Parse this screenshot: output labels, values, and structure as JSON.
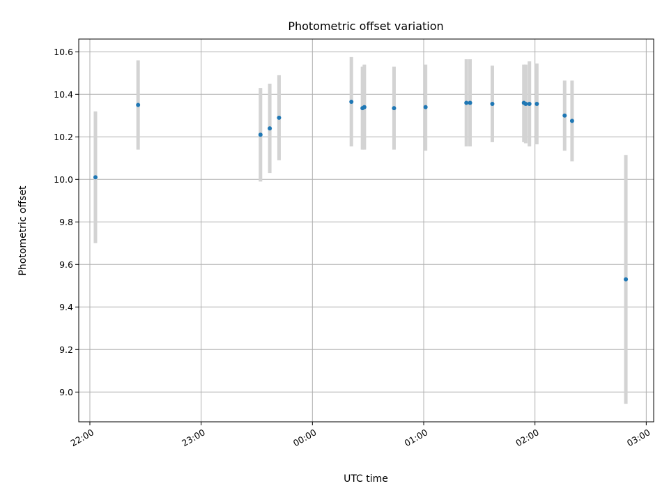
{
  "chart_data": {
    "type": "scatter",
    "title": "Photometric offset variation",
    "xlabel": "UTC time",
    "ylabel": "Photometric offset",
    "xlim": [
      "21:54",
      "03:04"
    ],
    "ylim": [
      8.86,
      10.66
    ],
    "grid": true,
    "colors": {
      "point": "#1f77b4",
      "errorbar": "#d3d3d3",
      "grid": "#b0b0b0"
    },
    "x_ticks": [
      "22:00",
      "23:00",
      "00:00",
      "01:00",
      "02:00",
      "03:00"
    ],
    "y_ticks": [
      "9.0",
      "9.2",
      "9.4",
      "9.6",
      "9.8",
      "10.0",
      "10.2",
      "10.4",
      "10.6"
    ],
    "points": [
      {
        "x": "22:03",
        "y": 10.01,
        "low": 9.7,
        "high": 10.32
      },
      {
        "x": "22:26",
        "y": 10.35,
        "low": 10.14,
        "high": 10.56
      },
      {
        "x": "23:32",
        "y": 10.21,
        "low": 9.99,
        "high": 10.43
      },
      {
        "x": "23:37",
        "y": 10.24,
        "low": 10.03,
        "high": 10.45
      },
      {
        "x": "23:42",
        "y": 10.29,
        "low": 10.09,
        "high": 10.49
      },
      {
        "x": "00:21",
        "y": 10.365,
        "low": 10.155,
        "high": 10.575
      },
      {
        "x": "00:27",
        "y": 10.335,
        "low": 10.14,
        "high": 10.53
      },
      {
        "x": "00:28",
        "y": 10.34,
        "low": 10.14,
        "high": 10.54
      },
      {
        "x": "00:44",
        "y": 10.335,
        "low": 10.14,
        "high": 10.53
      },
      {
        "x": "01:01",
        "y": 10.34,
        "low": 10.135,
        "high": 10.54
      },
      {
        "x": "01:23",
        "y": 10.36,
        "low": 10.155,
        "high": 10.565
      },
      {
        "x": "01:25",
        "y": 10.36,
        "low": 10.155,
        "high": 10.565
      },
      {
        "x": "01:37",
        "y": 10.355,
        "low": 10.175,
        "high": 10.535
      },
      {
        "x": "01:54",
        "y": 10.36,
        "low": 10.175,
        "high": 10.54
      },
      {
        "x": "01:55",
        "y": 10.355,
        "low": 10.17,
        "high": 10.54
      },
      {
        "x": "01:57",
        "y": 10.355,
        "low": 10.155,
        "high": 10.555
      },
      {
        "x": "02:01",
        "y": 10.355,
        "low": 10.165,
        "high": 10.545
      },
      {
        "x": "02:16",
        "y": 10.3,
        "low": 10.135,
        "high": 10.465
      },
      {
        "x": "02:20",
        "y": 10.275,
        "low": 10.085,
        "high": 10.465
      },
      {
        "x": "02:49",
        "y": 9.53,
        "low": 8.945,
        "high": 10.115
      }
    ]
  }
}
